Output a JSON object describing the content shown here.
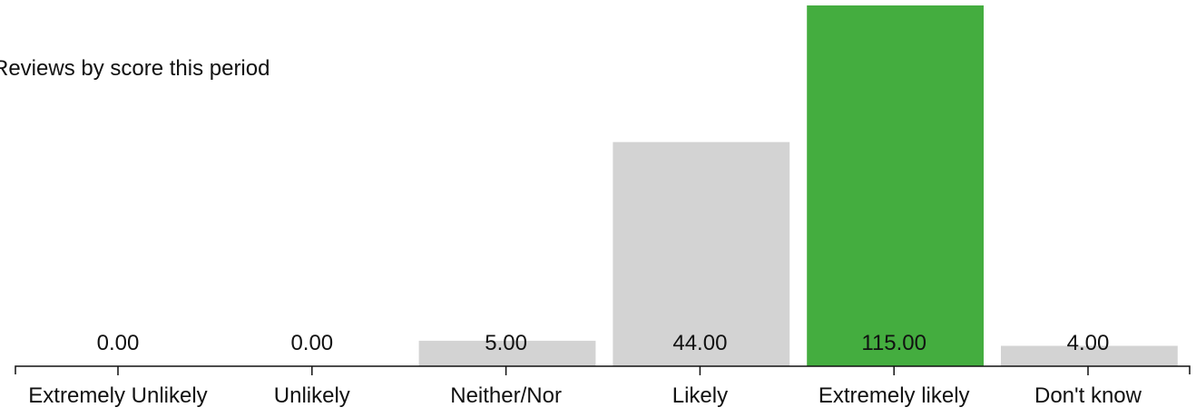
{
  "chart_data": {
    "type": "bar",
    "title": "",
    "subtitle": "Reviews by score this period",
    "xlabel": "",
    "ylabel": "",
    "categories": [
      "Extremely Unlikely",
      "Unlikely",
      "Neither/Nor",
      "Likely",
      "Extremely likely",
      "Don't know"
    ],
    "values": [
      0,
      0,
      5,
      44,
      115,
      4
    ],
    "value_labels": [
      "0.00",
      "0.00",
      "5.00",
      "44.00",
      "115.00",
      "4.00"
    ],
    "highlight_category": "Extremely likely",
    "grid": false,
    "legend": "none",
    "colors": {
      "default_bar": "#d3d3d3",
      "highlight_bar": "#44ad3f",
      "axis": "#111111",
      "text": "#111111"
    }
  }
}
